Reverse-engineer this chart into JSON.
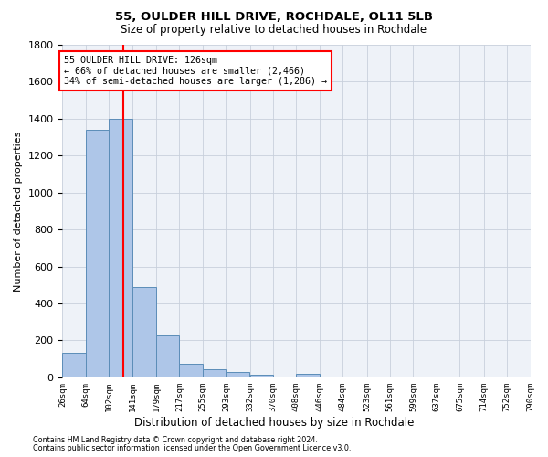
{
  "title": "55, OULDER HILL DRIVE, ROCHDALE, OL11 5LB",
  "subtitle": "Size of property relative to detached houses in Rochdale",
  "xlabel": "Distribution of detached houses by size in Rochdale",
  "ylabel": "Number of detached properties",
  "footer_line1": "Contains HM Land Registry data © Crown copyright and database right 2024.",
  "footer_line2": "Contains public sector information licensed under the Open Government Licence v3.0.",
  "bar_edges": [
    26,
    64,
    102,
    141,
    179,
    217,
    255,
    293,
    332,
    370,
    408,
    446,
    484,
    523,
    561,
    599,
    637,
    675,
    714,
    752,
    790
  ],
  "bar_heights": [
    135,
    1340,
    1400,
    490,
    225,
    75,
    45,
    28,
    12,
    0,
    20,
    0,
    0,
    0,
    0,
    0,
    0,
    0,
    0,
    0
  ],
  "bar_color": "#aec6e8",
  "bar_edge_color": "#5b8db8",
  "ylim": [
    0,
    1800
  ],
  "yticks": [
    0,
    200,
    400,
    600,
    800,
    1000,
    1200,
    1400,
    1600,
    1800
  ],
  "vline_x": 126,
  "vline_color": "red",
  "annotation_line1": "55 OULDER HILL DRIVE: 126sqm",
  "annotation_line2": "← 66% of detached houses are smaller (2,466)",
  "annotation_line3": "34% of semi-detached houses are larger (1,286) →",
  "background_color": "#eef2f8",
  "grid_color": "#c8d0dc"
}
